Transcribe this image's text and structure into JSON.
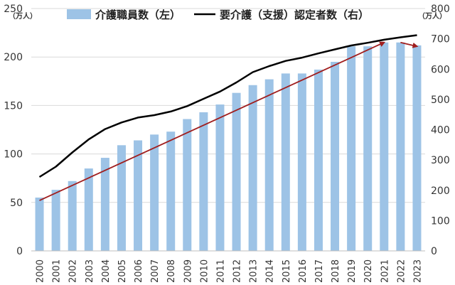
{
  "chart_data": {
    "type": "bar+line",
    "categories": [
      "2000",
      "2001",
      "2002",
      "2003",
      "2004",
      "2005",
      "2006",
      "2007",
      "2008",
      "2009",
      "2010",
      "2011",
      "2012",
      "2013",
      "2014",
      "2015",
      "2016",
      "2017",
      "2018",
      "2019",
      "2020",
      "2021",
      "2022",
      "2023"
    ],
    "series": [
      {
        "name": "介護職員数（左）",
        "type": "bar",
        "axis": "left",
        "color": "#9dc3e6",
        "values": [
          55,
          63,
          72,
          85,
          96,
          109,
          114,
          120,
          123,
          136,
          143,
          151,
          163,
          171,
          177,
          183,
          183,
          187,
          195,
          211,
          211,
          215,
          215,
          212
        ]
      },
      {
        "name": "要介護（支援）認定者数（右）",
        "type": "line",
        "axis": "right",
        "color": "#000000",
        "values": [
          244,
          278,
          325,
          368,
          402,
          424,
          440,
          448,
          460,
          478,
          502,
          526,
          556,
          590,
          610,
          627,
          638,
          652,
          665,
          678,
          687,
          697,
          705,
          712
        ]
      }
    ],
    "y_left": {
      "min": 0,
      "max": 250,
      "ticks": [
        0,
        50,
        100,
        150,
        200,
        250
      ],
      "unit": "（万人）"
    },
    "y_right": {
      "min": 0,
      "max": 800,
      "ticks": [
        0,
        100,
        200,
        300,
        400,
        500,
        600,
        700,
        800
      ],
      "unit": "（万人）"
    },
    "annotations": [
      {
        "type": "arrow",
        "color": "#a01e1e",
        "from": {
          "x": "2000",
          "y_left": 52
        },
        "to": {
          "x": "2021",
          "y_left": 215
        }
      },
      {
        "type": "arrow",
        "color": "#a01e1e",
        "from": {
          "x": "2022",
          "y_left": 215
        },
        "to": {
          "x": "2023",
          "y_left": 211
        }
      }
    ],
    "grid": true,
    "legend": "top"
  }
}
